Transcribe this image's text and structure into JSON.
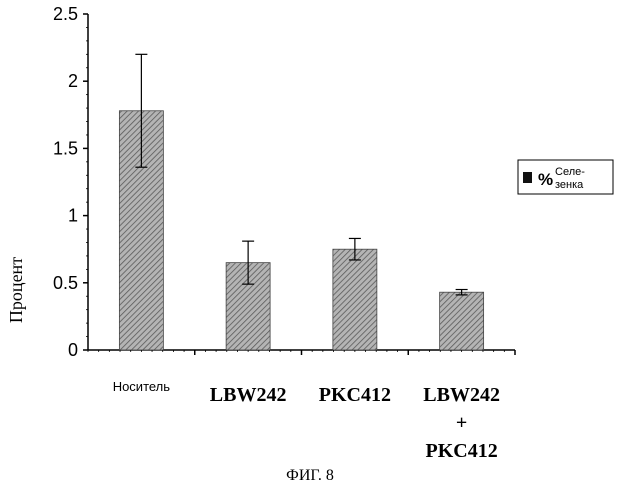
{
  "chart_data": {
    "type": "bar",
    "categories": [
      "Носитель",
      "LBW242",
      "PKC412",
      "LBW242 + PKC412"
    ],
    "category_lines": [
      [
        "Носитель"
      ],
      [
        "LBW242"
      ],
      [
        "PKC412"
      ],
      [
        "LBW242",
        "+",
        "PKC412"
      ]
    ],
    "values": [
      1.78,
      0.65,
      0.75,
      0.43
    ],
    "errors": [
      0.42,
      0.16,
      0.08,
      0.02
    ],
    "series": [
      {
        "name": "% Селе- зенка",
        "values": [
          1.78,
          0.65,
          0.75,
          0.43
        ]
      }
    ],
    "legend": {
      "symbol": "%",
      "text_line1": "Селе-",
      "text_line2": "зенка",
      "placement": "right"
    },
    "ylabel": "Процент",
    "ylim": [
      0,
      2.5
    ],
    "yticks": [
      0,
      0.5,
      1,
      1.5,
      2,
      2.5
    ],
    "ytick_labels": [
      "0",
      "0.5",
      "1",
      "1.5",
      "2",
      "2.5"
    ],
    "grid": false,
    "bar_color": "#8c8c8c",
    "caption": "ФИГ. 8"
  }
}
